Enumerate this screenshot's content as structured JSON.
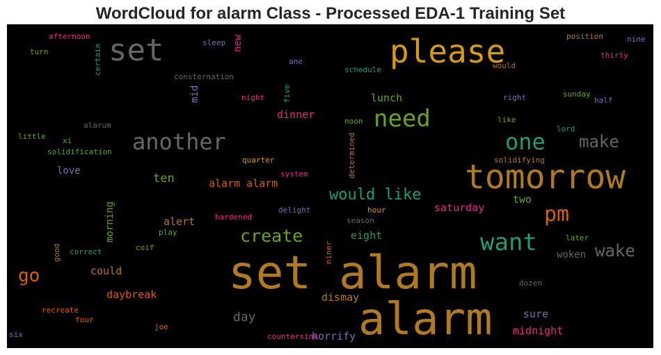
{
  "chart_data": {
    "type": "wordcloud",
    "title": "WordCloud for alarm Class - Processed EDA-1 Training Set",
    "background": "#000000",
    "words": [
      {
        "text": "set alarm",
        "color": "#b07a22"
      },
      {
        "text": "alarm",
        "color": "#b07a22"
      },
      {
        "text": "tomorrow",
        "color": "#b07a22"
      },
      {
        "text": "please",
        "color": "#d69a13"
      },
      {
        "text": "set",
        "color": "#666666"
      },
      {
        "text": "need",
        "color": "#66a61e"
      },
      {
        "text": "want",
        "color": "#1b9e77"
      },
      {
        "text": "another",
        "color": "#666666"
      },
      {
        "text": "one",
        "color": "#1b9e77"
      },
      {
        "text": "make",
        "color": "#666666"
      },
      {
        "text": "wake",
        "color": "#666666"
      },
      {
        "text": "pm",
        "color": "#d95f02"
      },
      {
        "text": "would like",
        "color": "#1b9e77"
      },
      {
        "text": "create",
        "color": "#66a61e"
      },
      {
        "text": "go",
        "color": "#d95f02"
      },
      {
        "text": "ten",
        "color": "#66a61e"
      },
      {
        "text": "alarm alarm",
        "color": "#d95f02"
      },
      {
        "text": "day",
        "color": "#666666"
      },
      {
        "text": "daybreak",
        "color": "#d95f02"
      },
      {
        "text": "could",
        "color": "#b07a22"
      },
      {
        "text": "dismay",
        "color": "#b07a22"
      },
      {
        "text": "midnight",
        "color": "#e7298a"
      },
      {
        "text": "sure",
        "color": "#7570b3"
      },
      {
        "text": "horrify",
        "color": "#7570b3"
      },
      {
        "text": "woken",
        "color": "#666666"
      },
      {
        "text": "saturday",
        "color": "#e7298a"
      },
      {
        "text": "alert",
        "color": "#b07a22"
      },
      {
        "text": "dinner",
        "color": "#e7298a"
      },
      {
        "text": "lunch",
        "color": "#66a61e"
      },
      {
        "text": "eight",
        "color": "#1b9e77"
      },
      {
        "text": "two",
        "color": "#66a61e"
      },
      {
        "text": "love",
        "color": "#7570b3"
      },
      {
        "text": "morning",
        "color": "#66a61e"
      },
      {
        "text": "new",
        "color": "#e7298a"
      },
      {
        "text": "mid",
        "color": "#7570b3"
      },
      {
        "text": "afternoon",
        "color": "#e7298a"
      },
      {
        "text": "turn",
        "color": "#66a61e"
      },
      {
        "text": "certain",
        "color": "#1b9e77"
      },
      {
        "text": "sleep",
        "color": "#7570b3"
      },
      {
        "text": "consternation",
        "color": "#666666"
      },
      {
        "text": "ane",
        "color": "#7570b3"
      },
      {
        "text": "schedule",
        "color": "#1b9e77"
      },
      {
        "text": "five",
        "color": "#1b9e77"
      },
      {
        "text": "night",
        "color": "#e7298a"
      },
      {
        "text": "noon",
        "color": "#66a61e"
      },
      {
        "text": "determined",
        "color": "#b07a22"
      },
      {
        "text": "position",
        "color": "#b07a22"
      },
      {
        "text": "nine",
        "color": "#7570b3"
      },
      {
        "text": "thirty",
        "color": "#e7298a"
      },
      {
        "text": "would",
        "color": "#b07a22"
      },
      {
        "text": "right",
        "color": "#7570b3"
      },
      {
        "text": "sunday",
        "color": "#66a61e"
      },
      {
        "text": "half",
        "color": "#7570b3"
      },
      {
        "text": "like",
        "color": "#66a61e"
      },
      {
        "text": "lord",
        "color": "#1b9e77"
      },
      {
        "text": "solidifying",
        "color": "#b07a22"
      },
      {
        "text": "alarum",
        "color": "#666666"
      },
      {
        "text": "little",
        "color": "#66a61e"
      },
      {
        "text": "xi",
        "color": "#66a61e"
      },
      {
        "text": "solidification",
        "color": "#66a61e"
      },
      {
        "text": "quarter",
        "color": "#d69a13"
      },
      {
        "text": "system",
        "color": "#e7298a"
      },
      {
        "text": "delight",
        "color": "#7570b3"
      },
      {
        "text": "hardened",
        "color": "#e7298a"
      },
      {
        "text": "hour",
        "color": "#d69a13"
      },
      {
        "text": "season",
        "color": "#666666"
      },
      {
        "text": "play",
        "color": "#66a61e"
      },
      {
        "text": "coif",
        "color": "#66a61e"
      },
      {
        "text": "correct",
        "color": "#1b9e77"
      },
      {
        "text": "good",
        "color": "#b07a22"
      },
      {
        "text": "niner",
        "color": "#d95f02"
      },
      {
        "text": "later",
        "color": "#66a61e"
      },
      {
        "text": "dozen",
        "color": "#666666"
      },
      {
        "text": "recreate",
        "color": "#d95f02"
      },
      {
        "text": "four",
        "color": "#d95f02"
      },
      {
        "text": "joe",
        "color": "#d95f02"
      },
      {
        "text": "countersink",
        "color": "#e7298a"
      },
      {
        "text": "six",
        "color": "#7570b3"
      }
    ]
  }
}
